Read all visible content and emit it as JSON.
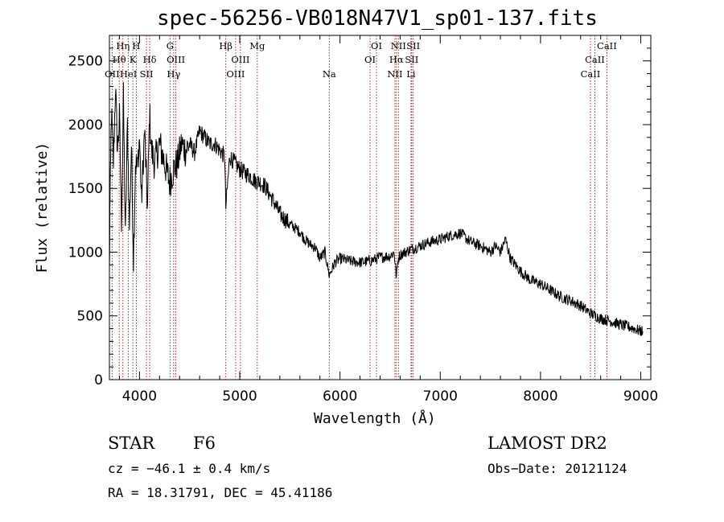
{
  "chart_data": {
    "type": "line",
    "title": "spec-56256-VB018N47V1_sp01-137.fits",
    "xlabel": "Wavelength (Å)",
    "ylabel": "Flux (relative)",
    "xlim": [
      3700,
      9100
    ],
    "ylim": [
      0,
      2700
    ],
    "xticks": [
      4000,
      5000,
      6000,
      7000,
      8000,
      9000
    ],
    "yticks": [
      0,
      500,
      1000,
      1500,
      2000,
      2500
    ],
    "grid": false,
    "series": [
      {
        "x": [
          3700,
          3705,
          3720,
          3740,
          3760,
          3780,
          3800,
          3820,
          3840,
          3860,
          3880,
          3900,
          3920,
          3940,
          3960,
          3980,
          4000,
          4020,
          4050,
          4080,
          4100,
          4120,
          4150,
          4200,
          4250,
          4300,
          4340,
          4380,
          4420,
          4460,
          4500,
          4550,
          4600,
          4650,
          4700,
          4750,
          4800,
          4850,
          4861,
          4900,
          4950,
          5000,
          5050,
          5100,
          5150,
          5200,
          5250,
          5300,
          5350,
          5400,
          5450,
          5500,
          5550,
          5600,
          5650,
          5700,
          5750,
          5800,
          5850,
          5893,
          5950,
          6000,
          6100,
          6200,
          6300,
          6400,
          6500,
          6540,
          6563,
          6580,
          6600,
          6700,
          6800,
          6900,
          7000,
          7100,
          7200,
          7300,
          7400,
          7500,
          7550,
          7600,
          7650,
          7700,
          7800,
          7900,
          8000,
          8100,
          8200,
          8300,
          8400,
          8500,
          8600,
          8700,
          8800,
          8900,
          9000,
          9020
        ],
        "y": [
          800,
          1300,
          2100,
          1700,
          2300,
          1800,
          2050,
          1250,
          2200,
          1100,
          2000,
          1200,
          1850,
          950,
          1700,
          1650,
          1900,
          1400,
          1950,
          1350,
          2100,
          1800,
          1700,
          1850,
          1700,
          1550,
          1650,
          1700,
          1850,
          1800,
          1850,
          1780,
          1950,
          1900,
          1850,
          1850,
          1800,
          1750,
          1350,
          1750,
          1700,
          1650,
          1620,
          1600,
          1560,
          1550,
          1520,
          1450,
          1380,
          1300,
          1260,
          1220,
          1190,
          1160,
          1100,
          1060,
          1040,
          950,
          1000,
          820,
          920,
          950,
          930,
          920,
          930,
          960,
          970,
          1000,
          800,
          950,
          980,
          1020,
          1050,
          1080,
          1100,
          1130,
          1150,
          1080,
          1050,
          1000,
          1050,
          1000,
          1100,
          950,
          850,
          780,
          750,
          700,
          650,
          620,
          580,
          520,
          480,
          460,
          430,
          410,
          380,
          380
        ]
      }
    ],
    "lines": [
      {
        "label": "Hη",
        "x": 3835,
        "row": 0
      },
      {
        "label": "H",
        "x": 3968,
        "row": 0
      },
      {
        "label": "Hθ",
        "x": 3798,
        "row": 1
      },
      {
        "label": "K",
        "x": 3934,
        "row": 1
      },
      {
        "label": "Hδ",
        "x": 4102,
        "row": 1
      },
      {
        "label": "OII",
        "x": 3727,
        "row": 2
      },
      {
        "label": "HeI",
        "x": 3889,
        "row": 2
      },
      {
        "label": "SII",
        "x": 4070,
        "row": 2
      },
      {
        "label": "G",
        "x": 4305,
        "row": 0
      },
      {
        "label": "OIII",
        "x": 4363,
        "row": 1
      },
      {
        "label": "Hγ",
        "x": 4341,
        "row": 2
      },
      {
        "label": "Hβ",
        "x": 4861,
        "row": 0
      },
      {
        "label": "Mg",
        "x": 5175,
        "row": 0
      },
      {
        "label": "OIII",
        "x": 5007,
        "row": 1
      },
      {
        "label": "OIII",
        "x": 4959,
        "row": 2
      },
      {
        "label": "Na",
        "x": 5893,
        "row": 2
      },
      {
        "label": "OI",
        "x": 6364,
        "row": 0
      },
      {
        "label": "OI",
        "x": 6300,
        "row": 1
      },
      {
        "label": "NII",
        "x": 6583,
        "row": 0
      },
      {
        "label": "SII",
        "x": 6731,
        "row": 0
      },
      {
        "label": "Hα",
        "x": 6563,
        "row": 1
      },
      {
        "label": "SII",
        "x": 6716,
        "row": 1
      },
      {
        "label": "NII",
        "x": 6548,
        "row": 2
      },
      {
        "label": "Li",
        "x": 6708,
        "row": 2
      },
      {
        "label": "CaII",
        "x": 8662,
        "row": 0
      },
      {
        "label": "CaII",
        "x": 8542,
        "row": 1
      },
      {
        "label": "CaII",
        "x": 8498,
        "row": 2
      }
    ]
  },
  "info": {
    "object_class": "STAR",
    "subclass": "F6",
    "survey": "LAMOST DR2",
    "redshift": "cz = −46.1 ± 0.4 km/s",
    "obs_date": "Obs−Date: 20121124",
    "coords": "RA =  18.31791, DEC =  45.41186"
  }
}
